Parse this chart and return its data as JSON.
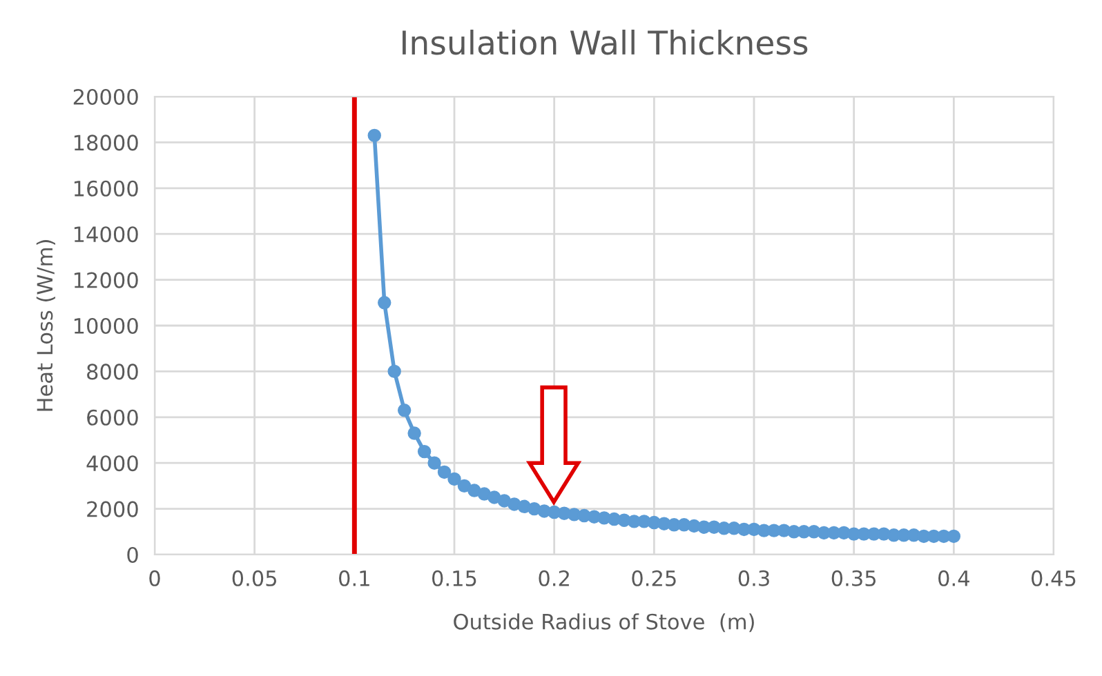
{
  "chart_data": {
    "type": "line",
    "title": "Insulation Wall Thickness",
    "xlabel": "Outside Radius of Stove  (m)",
    "ylabel": "Heat Loss (W/m)",
    "x": [
      0.11,
      0.115,
      0.12,
      0.125,
      0.13,
      0.135,
      0.14,
      0.145,
      0.15,
      0.155,
      0.16,
      0.165,
      0.17,
      0.175,
      0.18,
      0.185,
      0.19,
      0.195,
      0.2,
      0.205,
      0.21,
      0.215,
      0.22,
      0.225,
      0.23,
      0.235,
      0.24,
      0.245,
      0.25,
      0.255,
      0.26,
      0.265,
      0.27,
      0.275,
      0.28,
      0.285,
      0.29,
      0.295,
      0.3,
      0.305,
      0.31,
      0.315,
      0.32,
      0.325,
      0.33,
      0.335,
      0.34,
      0.345,
      0.35,
      0.355,
      0.36,
      0.365,
      0.37,
      0.375,
      0.38,
      0.385,
      0.39,
      0.395,
      0.4
    ],
    "series": [
      {
        "color": "#5b9bd5",
        "values": [
          18300,
          11000,
          8000,
          6300,
          5300,
          4500,
          4000,
          3600,
          3300,
          3000,
          2800,
          2650,
          2500,
          2350,
          2200,
          2100,
          2000,
          1900,
          1850,
          1800,
          1750,
          1700,
          1650,
          1600,
          1550,
          1500,
          1450,
          1450,
          1400,
          1350,
          1300,
          1300,
          1250,
          1200,
          1200,
          1150,
          1150,
          1100,
          1100,
          1050,
          1050,
          1050,
          1000,
          1000,
          1000,
          950,
          950,
          950,
          900,
          900,
          900,
          900,
          850,
          850,
          850,
          800,
          800,
          800,
          800
        ]
      }
    ],
    "xlim": [
      0,
      0.45
    ],
    "xticks": [
      0,
      0.05,
      0.1,
      0.15,
      0.2,
      0.25,
      0.3,
      0.35,
      0.4,
      0.45
    ],
    "ylim": [
      0,
      20000
    ],
    "yticks": [
      0,
      2000,
      4000,
      6000,
      8000,
      10000,
      12000,
      14000,
      16000,
      18000,
      20000
    ],
    "ref_lines": [
      {
        "axis": "x",
        "value": 0.1,
        "color": "#e00000"
      }
    ],
    "grid": true,
    "marker": "circle",
    "line_style": "solid"
  }
}
